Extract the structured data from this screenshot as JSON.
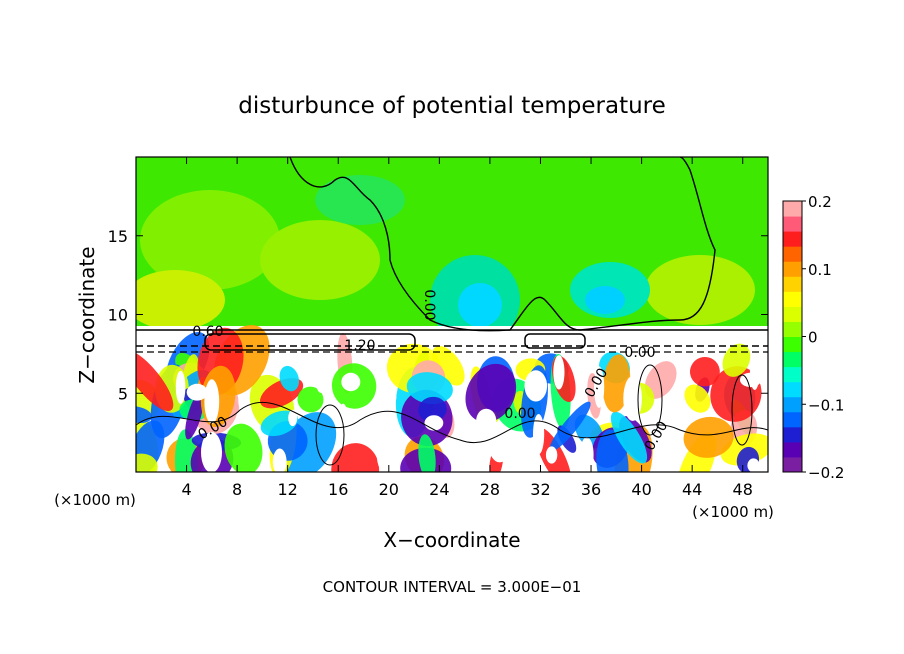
{
  "chart_data": {
    "type": "heatmap",
    "title": "disturbunce of potential temperature",
    "xlabel": "X−coordinate",
    "ylabel": "Z−coordinate",
    "x_unit_left": "(×1000 m)",
    "x_unit_right": "(×1000 m)",
    "xlim": [
      0,
      50
    ],
    "ylim": [
      0,
      20
    ],
    "x_ticks": [
      "4",
      "8",
      "12",
      "16",
      "20",
      "24",
      "28",
      "32",
      "36",
      "40",
      "44",
      "48"
    ],
    "y_ticks": [
      "5",
      "10",
      "15"
    ],
    "colorbar": {
      "range": [
        -0.2,
        0.2
      ],
      "tick_labels": [
        "0.2",
        "0.1",
        "0",
        "−0.1",
        "−0.2"
      ],
      "colors": [
        "#7b1fa2",
        "#5a00b4",
        "#1e1ed2",
        "#0064ff",
        "#00a0ff",
        "#00dcff",
        "#00ffc8",
        "#00ff64",
        "#3cff00",
        "#96ff00",
        "#dcff00",
        "#ffff00",
        "#ffd200",
        "#ffa000",
        "#ff6400",
        "#ff1e1e",
        "#ff5a78",
        "#ffaaaa"
      ]
    },
    "contour_labels": [
      "0.60",
      "1.20",
      "0.00",
      "0.00",
      "0.00",
      "0.00",
      "0.00",
      "0.00"
    ],
    "footer": "CONTOUR INTERVAL = 3.000E−01"
  }
}
